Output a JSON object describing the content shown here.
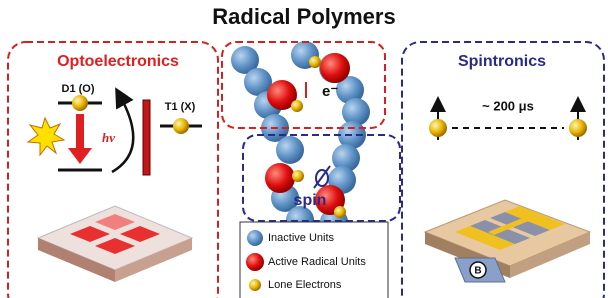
{
  "title": "Radical Polymers",
  "optoelectronics": {
    "title": "Optoelectronics",
    "d1_label": "D1 (O)",
    "t1_label": "T1 (X)",
    "excitation": "hv"
  },
  "center": {
    "electron": "e⁻",
    "spin": "spin"
  },
  "spintronics": {
    "title": "Spintronics",
    "lifetime": "~ 200 μs",
    "field": "B"
  },
  "legend": {
    "items": [
      "Inactive Units",
      "Active Radical Units",
      "Lone Electrons"
    ]
  }
}
